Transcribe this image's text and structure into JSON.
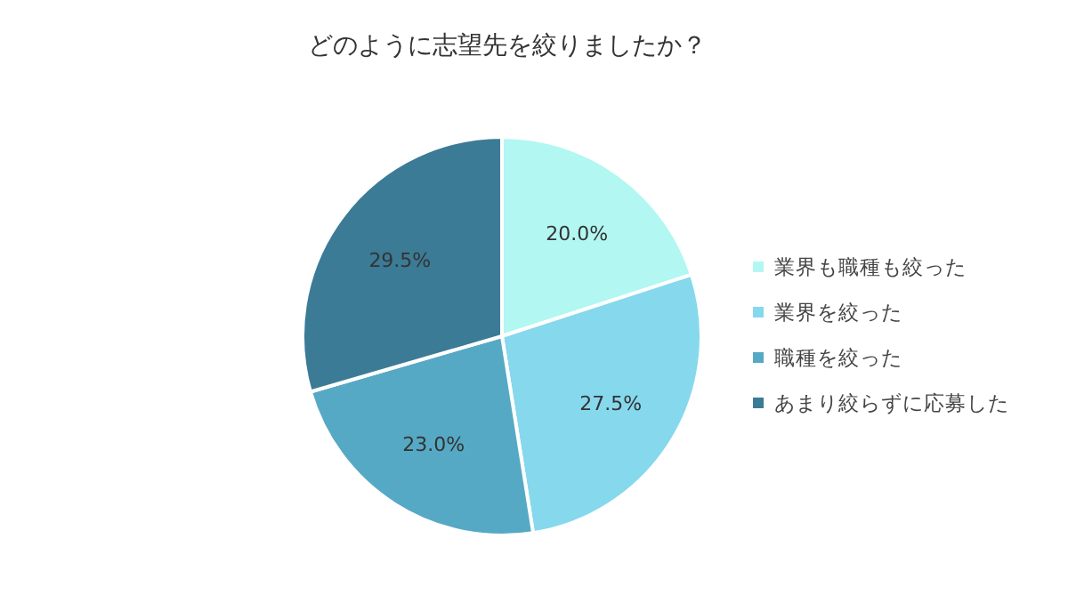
{
  "chart_data": {
    "type": "pie",
    "title": "どのように志望先を絞りましたか？",
    "categories": [
      "業界も職種も絞った",
      "業界を絞った",
      "職種を絞った",
      "あまり絞らずに応募した"
    ],
    "values": [
      20.0,
      27.5,
      23.0,
      29.5
    ],
    "colors": [
      "#b2f7f2",
      "#86d8ed",
      "#56a9c4",
      "#3b7b96"
    ],
    "value_labels": [
      "20.0%",
      "27.5%",
      "23.0%",
      "29.5%"
    ],
    "legend": "right"
  }
}
